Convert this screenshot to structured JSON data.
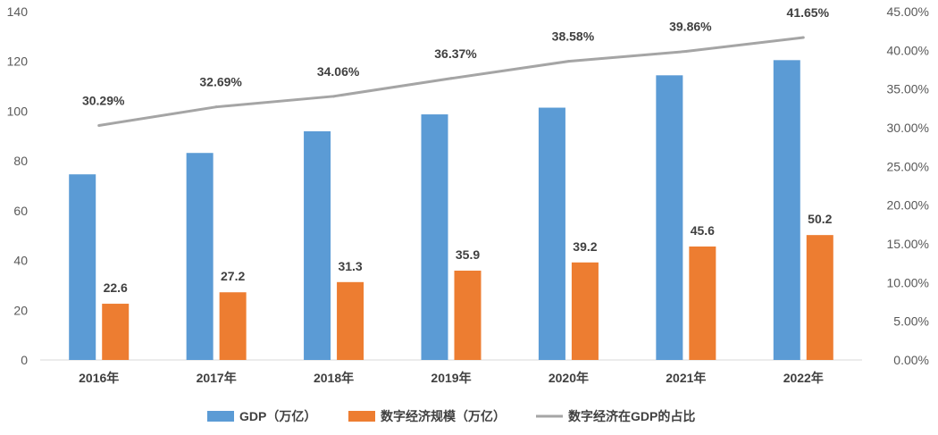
{
  "chart_data": {
    "type": "bar",
    "categories": [
      "2016年",
      "2017年",
      "2018年",
      "2019年",
      "2020年",
      "2021年",
      "2022年"
    ],
    "series": [
      {
        "name": "GDP（万亿）",
        "type": "bar",
        "axis": "left",
        "color": "#5B9BD5",
        "values": [
          74.6,
          83.2,
          91.9,
          98.7,
          101.4,
          114.4,
          120.5
        ]
      },
      {
        "name": "数字经济规模（万亿）",
        "type": "bar",
        "axis": "left",
        "color": "#ED7D31",
        "values": [
          22.6,
          27.2,
          31.3,
          35.9,
          39.2,
          45.6,
          50.2
        ],
        "labels": [
          "22.6",
          "27.2",
          "31.3",
          "35.9",
          "39.2",
          "45.6",
          "50.2"
        ]
      },
      {
        "name": "数字经济在GDP的占比",
        "type": "line",
        "axis": "right",
        "color": "#A5A5A5",
        "values": [
          30.29,
          32.69,
          34.06,
          36.37,
          38.58,
          39.86,
          41.65
        ],
        "labels": [
          "30.29%",
          "32.69%",
          "34.06%",
          "36.37%",
          "38.58%",
          "39.86%",
          "41.65%"
        ]
      }
    ],
    "y_left": {
      "lim": [
        0,
        140
      ],
      "ticks": [
        "0",
        "20",
        "40",
        "60",
        "80",
        "100",
        "120",
        "140"
      ]
    },
    "y_right": {
      "lim": [
        0,
        45
      ],
      "ticks": [
        "0.00%",
        "5.00%",
        "10.00%",
        "15.00%",
        "20.00%",
        "25.00%",
        "30.00%",
        "35.00%",
        "40.00%",
        "45.00%"
      ]
    },
    "legend_position": "bottom",
    "grid": false
  }
}
